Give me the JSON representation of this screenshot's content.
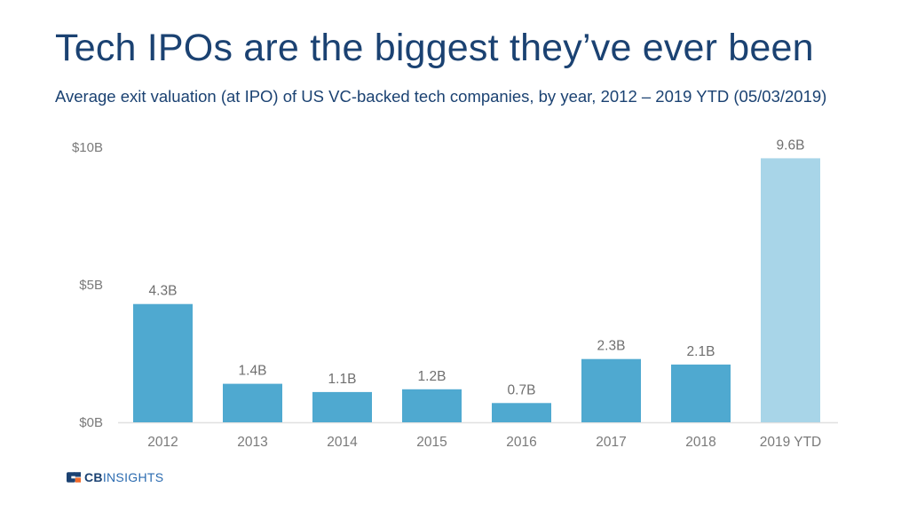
{
  "header": {
    "title": "Tech IPOs are the biggest they’ve ever been",
    "subtitle": "Average exit valuation (at IPO) of US VC-backed tech companies, by year, 2012 – 2019 YTD (05/03/2019)"
  },
  "logo": {
    "bold": "CB",
    "rest": "INSIGHTS"
  },
  "colors": {
    "bar": "#4fa9d0",
    "bar_highlight": "#a8d5e8",
    "title": "#1b4272",
    "axis": "#e0e0e0",
    "text": "#7a7a7a",
    "logo_orange": "#f26b2b"
  },
  "chart_data": {
    "type": "bar",
    "title": "Tech IPOs are the biggest they’ve ever been",
    "subtitle": "Average exit valuation (at IPO) of US VC-backed tech companies, by year, 2012 – 2019 YTD (05/03/2019)",
    "xlabel": "",
    "ylabel": "",
    "categories": [
      "2012",
      "2013",
      "2014",
      "2015",
      "2016",
      "2017",
      "2018",
      "2019 YTD"
    ],
    "values": [
      4.3,
      1.4,
      1.1,
      1.2,
      0.7,
      2.3,
      2.1,
      9.6
    ],
    "value_labels": [
      "4.3B",
      "1.4B",
      "1.1B",
      "1.2B",
      "0.7B",
      "2.3B",
      "2.1B",
      "9.6B"
    ],
    "highlight_index": 7,
    "ylim": [
      0,
      10
    ],
    "yticks": [
      0,
      5,
      10
    ],
    "ytick_labels": [
      "$0B",
      "$5B",
      "$10B"
    ],
    "grid": false,
    "legend": "none"
  }
}
